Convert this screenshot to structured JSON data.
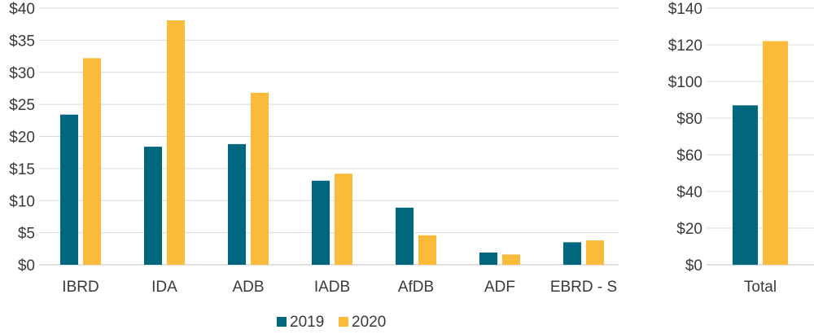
{
  "colors": {
    "2019": "#00677f",
    "2020": "#fbbb3a"
  },
  "legend": [
    {
      "name": "2019",
      "color": "#00677f"
    },
    {
      "name": "2020",
      "color": "#fbbb3a"
    }
  ],
  "chart_data": [
    {
      "type": "bar",
      "categories": [
        "IBRD",
        "IDA",
        "ADB",
        "IADB",
        "AfDB",
        "ADF",
        "EBRD - S"
      ],
      "series": [
        {
          "name": "2019",
          "values": [
            23.4,
            18.4,
            18.8,
            13.1,
            8.9,
            1.9,
            3.5
          ]
        },
        {
          "name": "2020",
          "values": [
            32.2,
            38.1,
            26.8,
            14.2,
            4.6,
            1.6,
            3.8
          ]
        }
      ],
      "yticks": [
        "$0",
        "$5",
        "$10",
        "$15",
        "$20",
        "$25",
        "$30",
        "$35",
        "$40"
      ],
      "ylim": [
        0,
        40
      ],
      "grid": true,
      "legend_position": "bottom"
    },
    {
      "type": "bar",
      "categories": [
        "Total"
      ],
      "series": [
        {
          "name": "2019",
          "values": [
            87
          ]
        },
        {
          "name": "2020",
          "values": [
            122
          ]
        }
      ],
      "yticks": [
        "$0",
        "$20",
        "$40",
        "$60",
        "$80",
        "$100",
        "$120",
        "$140"
      ],
      "ylim": [
        0,
        140
      ],
      "grid": true
    }
  ]
}
